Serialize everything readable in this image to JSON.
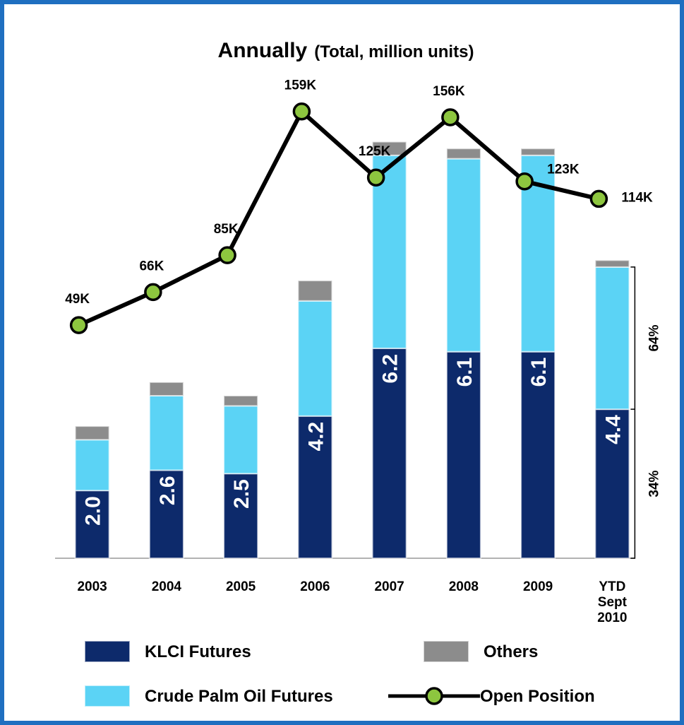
{
  "chart_data": {
    "type": "bar",
    "stacked": true,
    "title": "Annually",
    "subtitle": "(Total, million units)",
    "categories": [
      "2003",
      "2004",
      "2005",
      "2006",
      "2007",
      "2008",
      "2009",
      "YTD Sept 2010"
    ],
    "ylim": [
      0,
      14.4
    ],
    "y2lim": [
      -71000,
      180000
    ],
    "series": [
      {
        "name": "KLCI Futures",
        "color": "#0d2a6b",
        "values": [
          2.0,
          2.6,
          2.5,
          4.2,
          6.2,
          6.1,
          6.1,
          4.4
        ],
        "value_labels": [
          "2.0",
          "2.6",
          "2.5",
          "4.2",
          "6.2",
          "6.1",
          "6.1",
          "4.4"
        ]
      },
      {
        "name": "Crude Palm Oil Futures",
        "color": "#5bd3f5",
        "values": [
          1.5,
          2.2,
          2.0,
          3.4,
          5.7,
          5.7,
          5.8,
          4.2
        ]
      },
      {
        "name": "Others",
        "color": "#8c8c8c",
        "values": [
          0.4,
          0.4,
          0.3,
          0.6,
          0.4,
          0.3,
          0.2,
          0.2
        ]
      },
      {
        "name": "Open Position",
        "type": "line",
        "axis": "y2",
        "color": "#000000",
        "marker_color": "#8dc63f",
        "values": [
          49000,
          66000,
          85000,
          159000,
          125000,
          156000,
          123000,
          114000
        ],
        "value_labels": [
          "49K",
          "66K",
          "85K",
          "159K",
          "125K",
          "156K",
          "123K",
          "114K"
        ]
      }
    ],
    "annotations": [
      {
        "text": "34%"
      },
      {
        "text": "64%"
      }
    ],
    "legend": "bottom"
  }
}
